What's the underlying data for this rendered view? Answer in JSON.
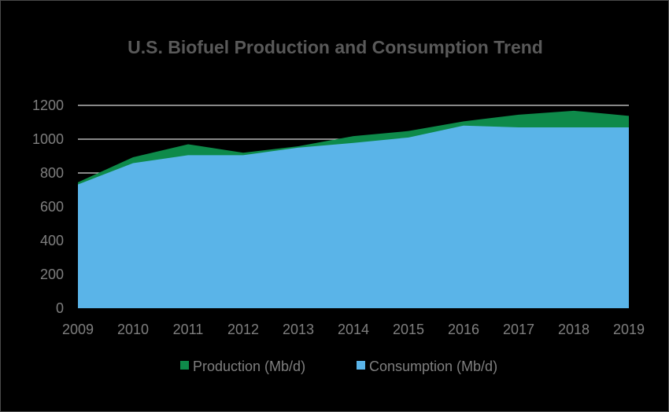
{
  "chart_data": {
    "type": "area",
    "title": "U.S. Biofuel Production and Consumption Trend",
    "x": [
      2009,
      2010,
      2011,
      2012,
      2013,
      2014,
      2015,
      2016,
      2017,
      2018,
      2019
    ],
    "y_ticks": [
      0,
      200,
      400,
      600,
      800,
      1000,
      1200
    ],
    "ylim": [
      0,
      1200
    ],
    "grid": "horizontal",
    "legend_position": "bottom",
    "series": [
      {
        "name": "Production (Mb/d)",
        "color": "#0e8a4a",
        "values": [
          745,
          893,
          970,
          920,
          958,
          1018,
          1048,
          1105,
          1145,
          1168,
          1138
        ]
      },
      {
        "name": "Consumption (Mb/d)",
        "color": "#5ab4e8",
        "values": [
          732,
          858,
          905,
          905,
          950,
          978,
          1010,
          1080,
          1070,
          1070,
          1070
        ]
      }
    ]
  }
}
